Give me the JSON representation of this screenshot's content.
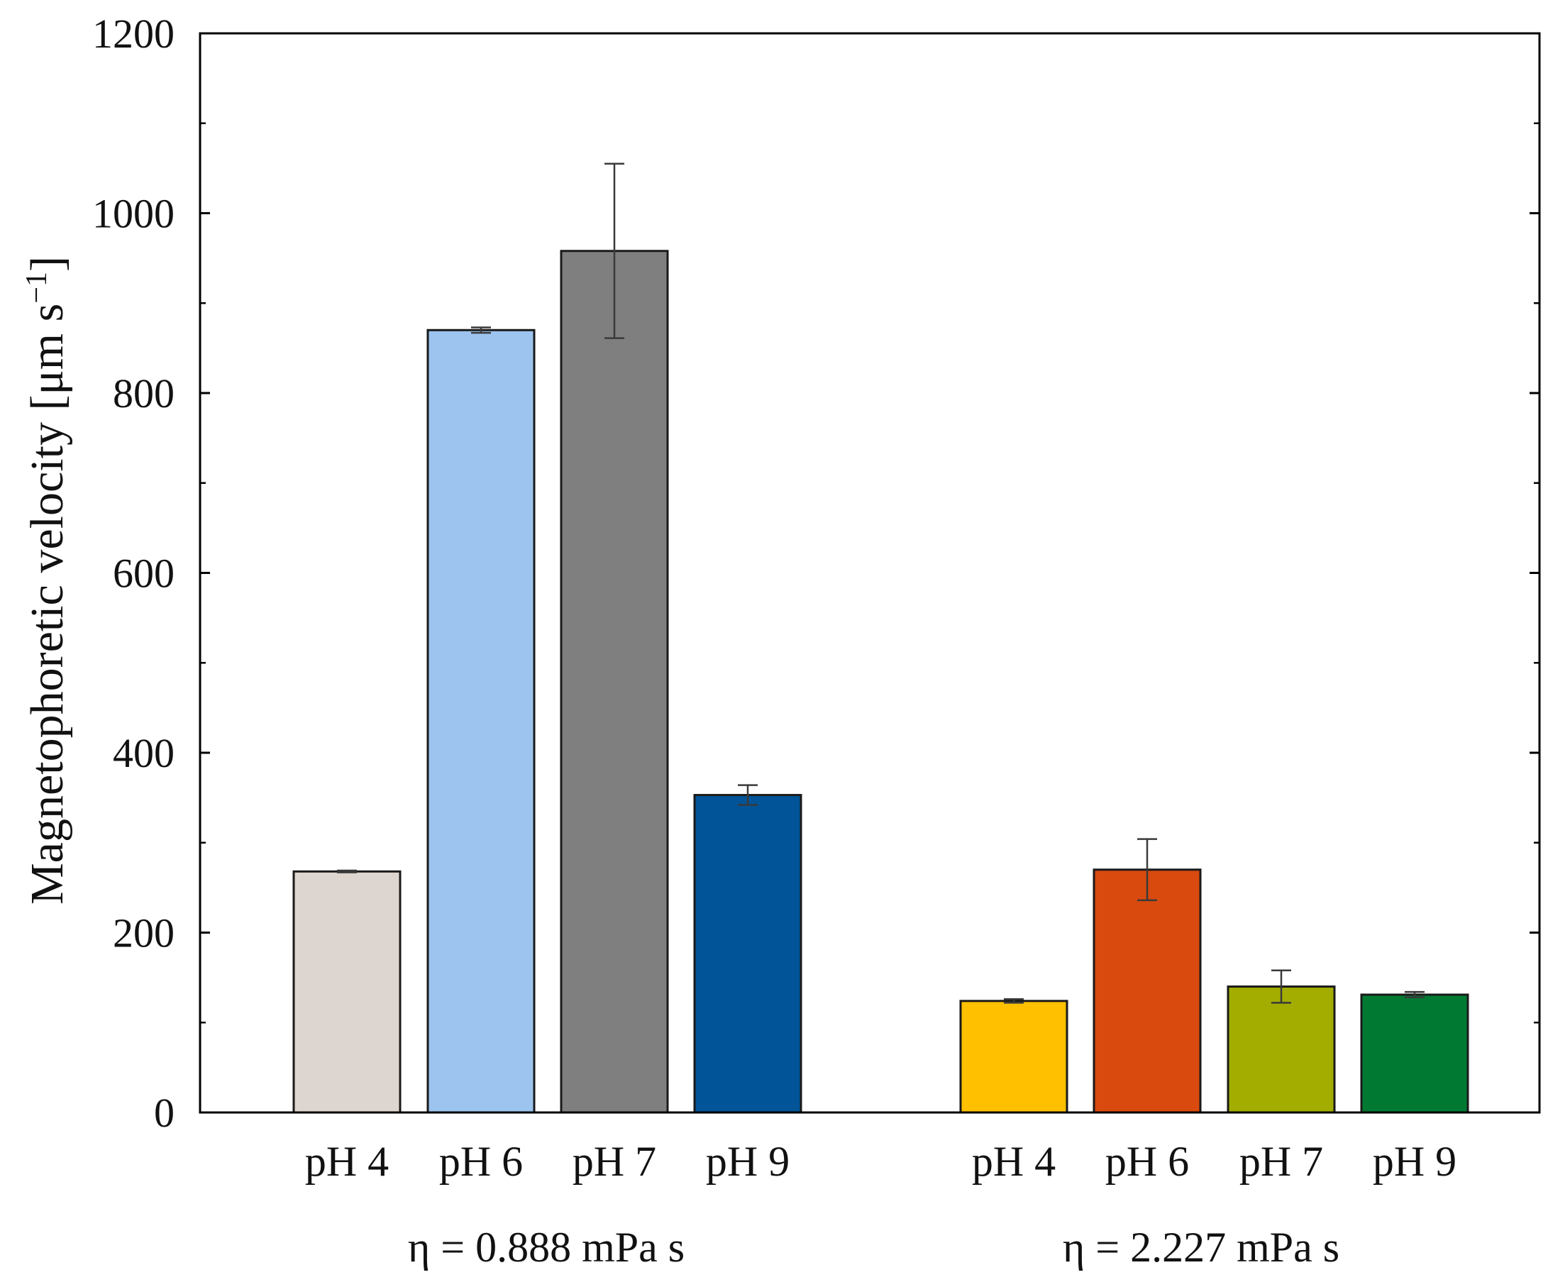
{
  "chart_data": {
    "type": "bar",
    "title": "",
    "xlabel": "",
    "ylabel": "Magnetophoretic velocity [μm s",
    "ylabel_superscript": "−1",
    "ylabel_suffix": "]",
    "ylim": [
      0,
      1200
    ],
    "yticks": [
      0,
      200,
      400,
      600,
      800,
      1000,
      1200
    ],
    "yticks_minor": [
      100,
      300,
      500,
      700,
      900,
      1100
    ],
    "grid": false,
    "groups": [
      {
        "label": "η = 0.888 mPa s",
        "bars": [
          {
            "category": "pH 4",
            "value": 268,
            "error": 1,
            "color": "#ddd5cf"
          },
          {
            "category": "pH 6",
            "value": 870,
            "error": 3,
            "color": "#9cc4ee"
          },
          {
            "category": "pH 7",
            "value": 958,
            "error": 97,
            "color": "#7f7f7f"
          },
          {
            "category": "pH 9",
            "value": 353,
            "error": 11,
            "color": "#005497"
          }
        ]
      },
      {
        "label": "η = 2.227 mPa s",
        "bars": [
          {
            "category": "pH 4",
            "value": 124,
            "error": 2,
            "color": "#ffc000"
          },
          {
            "category": "pH 6",
            "value": 270,
            "error": 34,
            "color": "#d84a0e"
          },
          {
            "category": "pH 7",
            "value": 140,
            "error": 18,
            "color": "#a2ad00"
          },
          {
            "category": "pH 9",
            "value": 131,
            "error": 3,
            "color": "#007a33"
          }
        ]
      }
    ]
  }
}
